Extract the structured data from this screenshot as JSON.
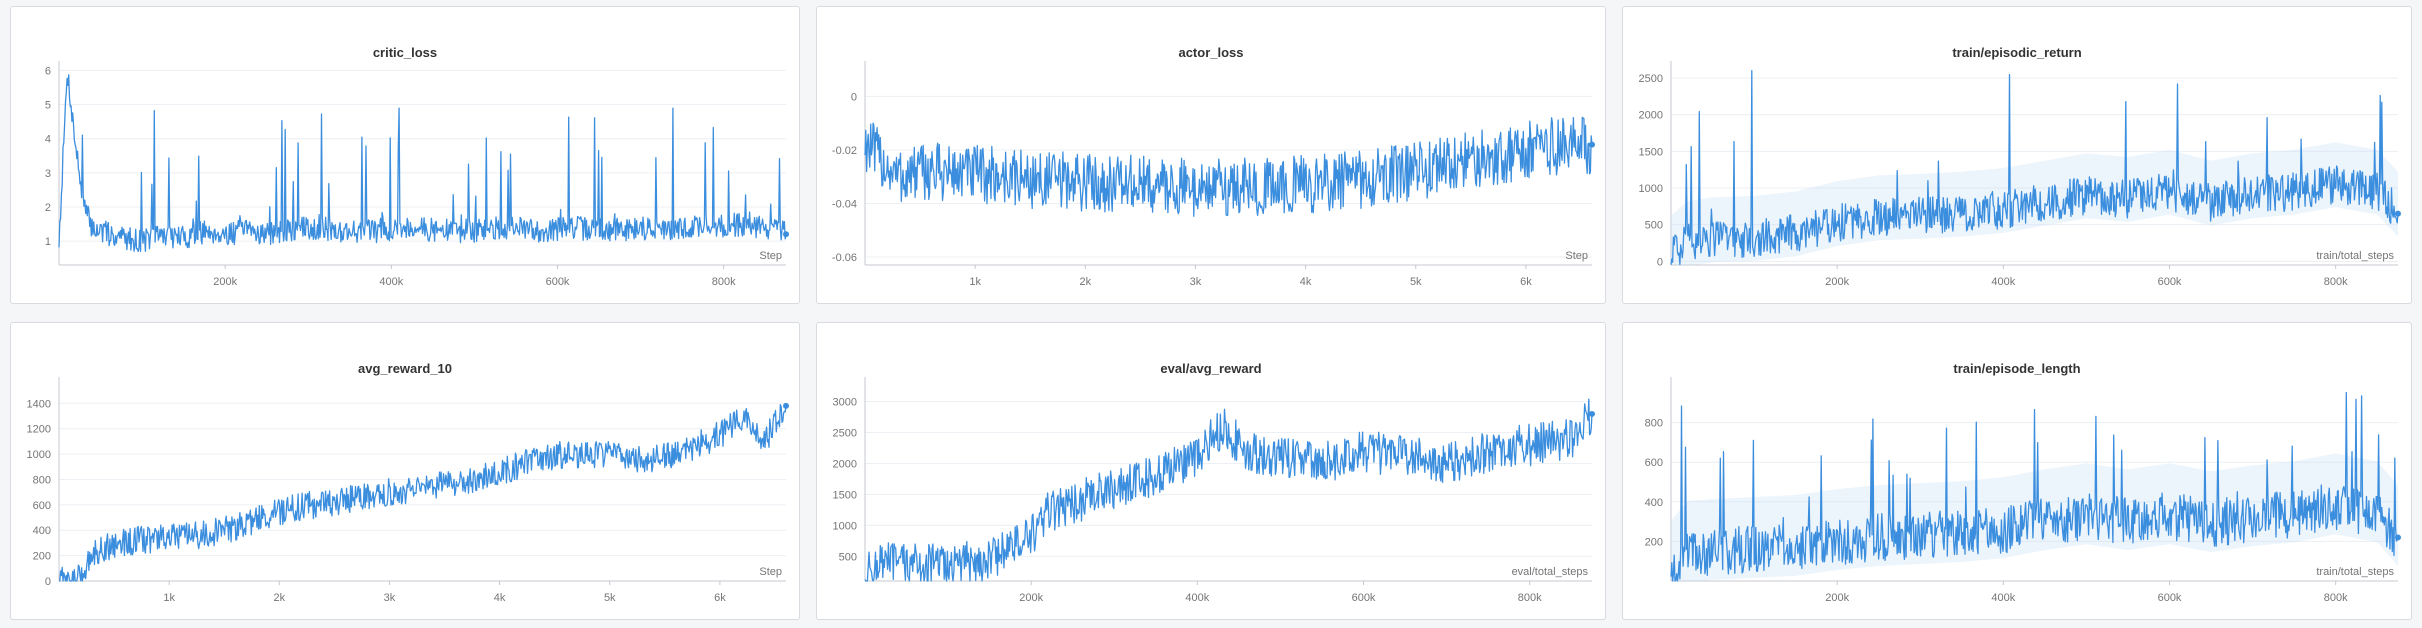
{
  "theme": {
    "line_color": "#3b8ede",
    "band_color": "#c9dff5",
    "grid_color": "#eceff3",
    "axis_color": "#c4c8cf"
  },
  "chart_data": [
    {
      "type": "line",
      "title": "critic_loss",
      "xlabel": "Step",
      "xlim": [
        0,
        875000
      ],
      "ylim": [
        0.3,
        6.1
      ],
      "xticks": [
        {
          "value": 200000,
          "label": "200k"
        },
        {
          "value": 400000,
          "label": "400k"
        },
        {
          "value": 600000,
          "label": "600k"
        },
        {
          "value": 800000,
          "label": "800k"
        }
      ],
      "yticks": [
        {
          "value": 1,
          "label": "1"
        },
        {
          "value": 2,
          "label": "2"
        },
        {
          "value": 3,
          "label": "3"
        },
        {
          "value": 4,
          "label": "4"
        },
        {
          "value": 5,
          "label": "5"
        },
        {
          "value": 6,
          "label": "6"
        }
      ],
      "last_point": true,
      "band": false,
      "series": [
        {
          "x": [
            0,
            10000,
            20000,
            30000,
            40000,
            60000,
            80000,
            100000,
            120000,
            150000,
            180000,
            200000,
            230000,
            260000,
            300000,
            340000,
            380000,
            420000,
            460000,
            500000,
            540000,
            580000,
            620000,
            660000,
            700000,
            740000,
            780000,
            800000,
            820000,
            840000,
            860000,
            875000
          ],
          "y": [
            1.0,
            6.0,
            3.8,
            2.0,
            1.4,
            1.2,
            1.1,
            1.0,
            1.2,
            1.1,
            1.3,
            1.2,
            1.3,
            1.2,
            1.4,
            1.3,
            1.3,
            1.4,
            1.3,
            1.3,
            1.4,
            1.3,
            1.4,
            1.3,
            1.4,
            1.3,
            1.5,
            1.4,
            1.5,
            1.4,
            1.4,
            1.2
          ],
          "noise": 0.35,
          "spike_max": 4.9,
          "spike_rate": 0.05
        }
      ]
    },
    {
      "type": "line",
      "title": "actor_loss",
      "xlabel": "Step",
      "xlim": [
        0,
        6600
      ],
      "ylim": [
        -0.063,
        0.011
      ],
      "xticks": [
        {
          "value": 1000,
          "label": "1k"
        },
        {
          "value": 2000,
          "label": "2k"
        },
        {
          "value": 3000,
          "label": "3k"
        },
        {
          "value": 4000,
          "label": "4k"
        },
        {
          "value": 5000,
          "label": "5k"
        },
        {
          "value": 6000,
          "label": "6k"
        }
      ],
      "yticks": [
        {
          "value": 0,
          "label": "0"
        },
        {
          "value": -0.02,
          "label": "-0.02"
        },
        {
          "value": -0.04,
          "label": "-0.04"
        },
        {
          "value": -0.06,
          "label": "-0.06"
        }
      ],
      "last_point": true,
      "band": false,
      "series": [
        {
          "x": [
            0,
            100,
            300,
            600,
            1000,
            1500,
            2000,
            2500,
            3000,
            3500,
            4000,
            4500,
            5000,
            5500,
            6000,
            6400,
            6600
          ],
          "y": [
            -0.017,
            -0.022,
            -0.03,
            -0.028,
            -0.029,
            -0.031,
            -0.032,
            -0.033,
            -0.034,
            -0.034,
            -0.033,
            -0.031,
            -0.028,
            -0.024,
            -0.02,
            -0.018,
            -0.018
          ],
          "noise": 0.011,
          "spike_max": 0,
          "spike_rate": 0
        }
      ]
    },
    {
      "type": "line",
      "title": "train/episodic_return",
      "xlabel": "train/total_steps",
      "xlim": [
        0,
        875000
      ],
      "ylim": [
        -50,
        2650
      ],
      "xticks": [
        {
          "value": 200000,
          "label": "200k"
        },
        {
          "value": 400000,
          "label": "400k"
        },
        {
          "value": 600000,
          "label": "600k"
        },
        {
          "value": 800000,
          "label": "800k"
        }
      ],
      "yticks": [
        {
          "value": 0,
          "label": "0"
        },
        {
          "value": 500,
          "label": "500"
        },
        {
          "value": 1000,
          "label": "1000"
        },
        {
          "value": 1500,
          "label": "1500"
        },
        {
          "value": 2000,
          "label": "2000"
        },
        {
          "value": 2500,
          "label": "2500"
        }
      ],
      "last_point": true,
      "band": true,
      "series": [
        {
          "x": [
            0,
            20000,
            50000,
            100000,
            150000,
            200000,
            250000,
            300000,
            350000,
            400000,
            450000,
            500000,
            550000,
            600000,
            650000,
            700000,
            750000,
            800000,
            850000,
            875000
          ],
          "y": [
            50,
            250,
            300,
            320,
            380,
            520,
            600,
            620,
            650,
            700,
            800,
            900,
            850,
            950,
            800,
            900,
            950,
            1050,
            950,
            650
          ],
          "noise": 260,
          "spike_max": 2600,
          "spike_rate": 0.04
        }
      ]
    },
    {
      "type": "line",
      "title": "avg_reward_10",
      "xlabel": "Step",
      "xlim": [
        0,
        6600
      ],
      "ylim": [
        0,
        1560
      ],
      "xticks": [
        {
          "value": 1000,
          "label": "1k"
        },
        {
          "value": 2000,
          "label": "2k"
        },
        {
          "value": 3000,
          "label": "3k"
        },
        {
          "value": 4000,
          "label": "4k"
        },
        {
          "value": 5000,
          "label": "5k"
        },
        {
          "value": 6000,
          "label": "6k"
        }
      ],
      "yticks": [
        {
          "value": 0,
          "label": "0"
        },
        {
          "value": 200,
          "label": "200"
        },
        {
          "value": 400,
          "label": "400"
        },
        {
          "value": 600,
          "label": "600"
        },
        {
          "value": 800,
          "label": "800"
        },
        {
          "value": 1000,
          "label": "1000"
        },
        {
          "value": 1200,
          "label": "1200"
        },
        {
          "value": 1400,
          "label": "1400"
        }
      ],
      "last_point": true,
      "band": false,
      "series": [
        {
          "x": [
            0,
            150,
            200,
            300,
            500,
            800,
            1000,
            1300,
            1600,
            2000,
            2300,
            2600,
            3000,
            3300,
            3600,
            4000,
            4300,
            4600,
            5000,
            5300,
            5600,
            6000,
            6200,
            6400,
            6600
          ],
          "y": [
            0,
            0,
            30,
            220,
            290,
            330,
            340,
            360,
            420,
            550,
            600,
            640,
            700,
            720,
            780,
            850,
            950,
            1000,
            1000,
            950,
            1000,
            1150,
            1300,
            1100,
            1380
          ],
          "noise": 110,
          "spike_max": 0,
          "spike_rate": 0
        }
      ]
    },
    {
      "type": "line",
      "title": "eval/avg_reward",
      "xlabel": "eval/total_steps",
      "xlim": [
        0,
        875000
      ],
      "ylim": [
        100,
        3300
      ],
      "xticks": [
        {
          "value": 200000,
          "label": "200k"
        },
        {
          "value": 400000,
          "label": "400k"
        },
        {
          "value": 600000,
          "label": "600k"
        },
        {
          "value": 800000,
          "label": "800k"
        }
      ],
      "yticks": [
        {
          "value": 500,
          "label": "500"
        },
        {
          "value": 1000,
          "label": "1000"
        },
        {
          "value": 1500,
          "label": "1500"
        },
        {
          "value": 2000,
          "label": "2000"
        },
        {
          "value": 2500,
          "label": "2500"
        },
        {
          "value": 3000,
          "label": "3000"
        }
      ],
      "last_point": true,
      "band": false,
      "series": [
        {
          "x": [
            0,
            20000,
            50000,
            100000,
            150000,
            180000,
            200000,
            220000,
            260000,
            300000,
            350000,
            400000,
            430000,
            460000,
            500000,
            550000,
            600000,
            650000,
            700000,
            750000,
            800000,
            850000,
            875000
          ],
          "y": [
            200,
            400,
            380,
            360,
            450,
            700,
            800,
            1200,
            1400,
            1600,
            1800,
            2100,
            2600,
            2200,
            2100,
            2000,
            2200,
            2100,
            2000,
            2200,
            2300,
            2400,
            2800
          ],
          "noise": 340,
          "spike_max": 0,
          "spike_rate": 0
        }
      ]
    },
    {
      "type": "line",
      "title": "train/episode_length",
      "xlabel": "train/total_steps",
      "xlim": [
        0,
        875000
      ],
      "ylim": [
        0,
        1000
      ],
      "xticks": [
        {
          "value": 200000,
          "label": "200k"
        },
        {
          "value": 400000,
          "label": "400k"
        },
        {
          "value": 600000,
          "label": "600k"
        },
        {
          "value": 800000,
          "label": "800k"
        }
      ],
      "yticks": [
        {
          "value": 200,
          "label": "200"
        },
        {
          "value": 400,
          "label": "400"
        },
        {
          "value": 600,
          "label": "600"
        },
        {
          "value": 800,
          "label": "800"
        }
      ],
      "last_point": true,
      "band": true,
      "series": [
        {
          "x": [
            0,
            20000,
            50000,
            100000,
            150000,
            200000,
            250000,
            300000,
            350000,
            400000,
            450000,
            500000,
            550000,
            600000,
            650000,
            700000,
            750000,
            800000,
            850000,
            875000
          ],
          "y": [
            40,
            140,
            150,
            160,
            170,
            200,
            220,
            230,
            240,
            260,
            300,
            330,
            300,
            330,
            290,
            320,
            340,
            380,
            340,
            220
          ],
          "noise": 120,
          "spike_max": 970,
          "spike_rate": 0.04
        }
      ]
    }
  ]
}
